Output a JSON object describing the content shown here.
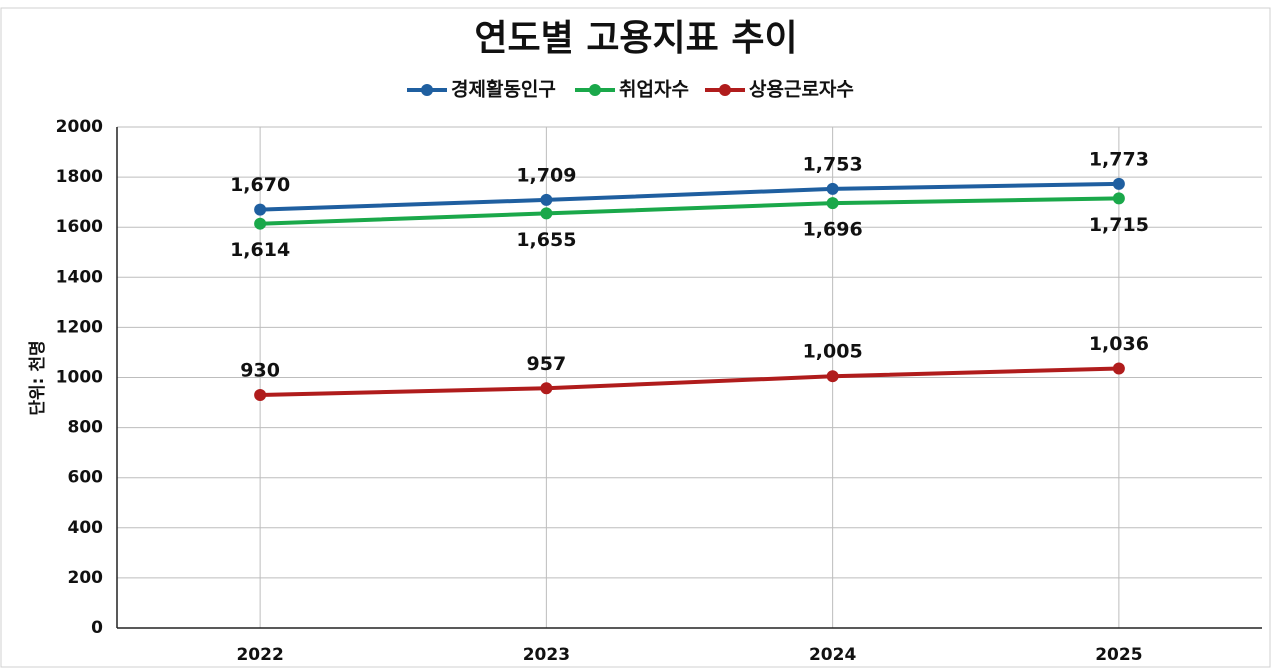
{
  "chart_data": {
    "type": "line",
    "title": "연도별 고용지표 추이",
    "ylabel": "단위: 천명",
    "categories": [
      "2022",
      "2023",
      "2024",
      "2025"
    ],
    "series": [
      {
        "name": "경제활동인구",
        "color": "#1f5fa0",
        "values": [
          1670,
          1709,
          1753,
          1773
        ],
        "value_labels": [
          "1,670",
          "1,709",
          "1,753",
          "1,773"
        ]
      },
      {
        "name": "취업자수",
        "color": "#1aa84a",
        "values": [
          1614,
          1655,
          1696,
          1715
        ],
        "value_labels": [
          "1,614",
          "1,655",
          "1,696",
          "1,715"
        ]
      },
      {
        "name": "상용근로자수",
        "color": "#b01c1c",
        "values": [
          930,
          957,
          1005,
          1036
        ],
        "value_labels": [
          "930",
          "957",
          "1,005",
          "1,036"
        ]
      }
    ],
    "ylim": [
      0,
      2000
    ],
    "yticks": [
      0,
      200,
      400,
      600,
      800,
      1000,
      1200,
      1400,
      1600,
      1800,
      2000
    ],
    "grid": true,
    "legend": "top"
  }
}
